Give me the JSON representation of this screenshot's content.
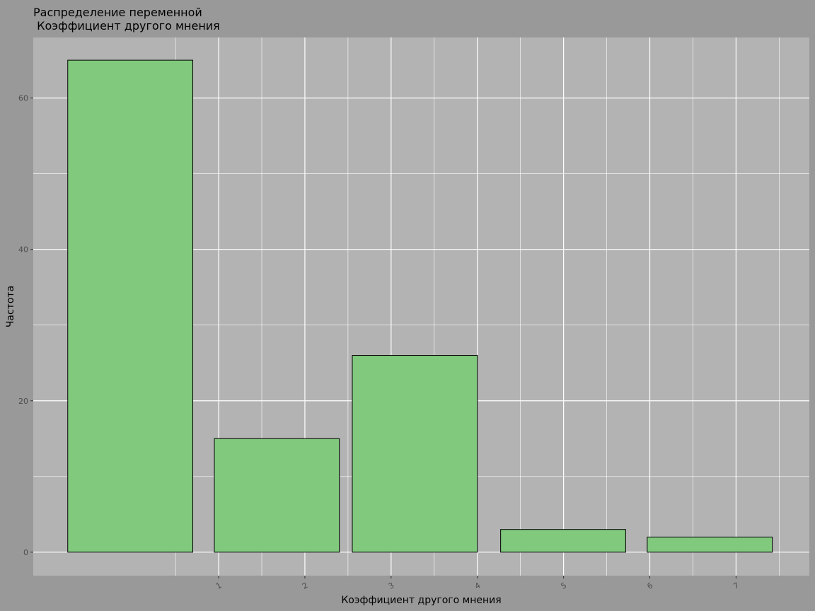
{
  "chart_data": {
    "type": "bar",
    "title": [
      "Распределение переменной",
      " Коэффициент другого мнения"
    ],
    "xlabel": "Коэффициент другого мнения",
    "ylabel": "Частота",
    "bins": [
      {
        "x_start": -0.75,
        "x_end": 0.7,
        "value": 65
      },
      {
        "x_start": 0.95,
        "x_end": 2.4,
        "value": 15
      },
      {
        "x_start": 2.55,
        "x_end": 4.0,
        "value": 26
      },
      {
        "x_start": 4.27,
        "x_end": 5.72,
        "value": 3
      },
      {
        "x_start": 5.97,
        "x_end": 7.42,
        "value": 2
      }
    ],
    "x_ticks": [
      1,
      2,
      3,
      4,
      5,
      6,
      7
    ],
    "y_ticks": [
      0,
      20,
      40,
      60
    ],
    "xlim": [
      -1.15,
      7.85
    ],
    "ylim": [
      -3.1,
      68
    ],
    "grid": true,
    "colors": {
      "background": "#999999",
      "panel": "#b3b3b3",
      "grid": "#ffffff",
      "bar_fill": "#80c97d",
      "bar_stroke": "#000000"
    }
  }
}
